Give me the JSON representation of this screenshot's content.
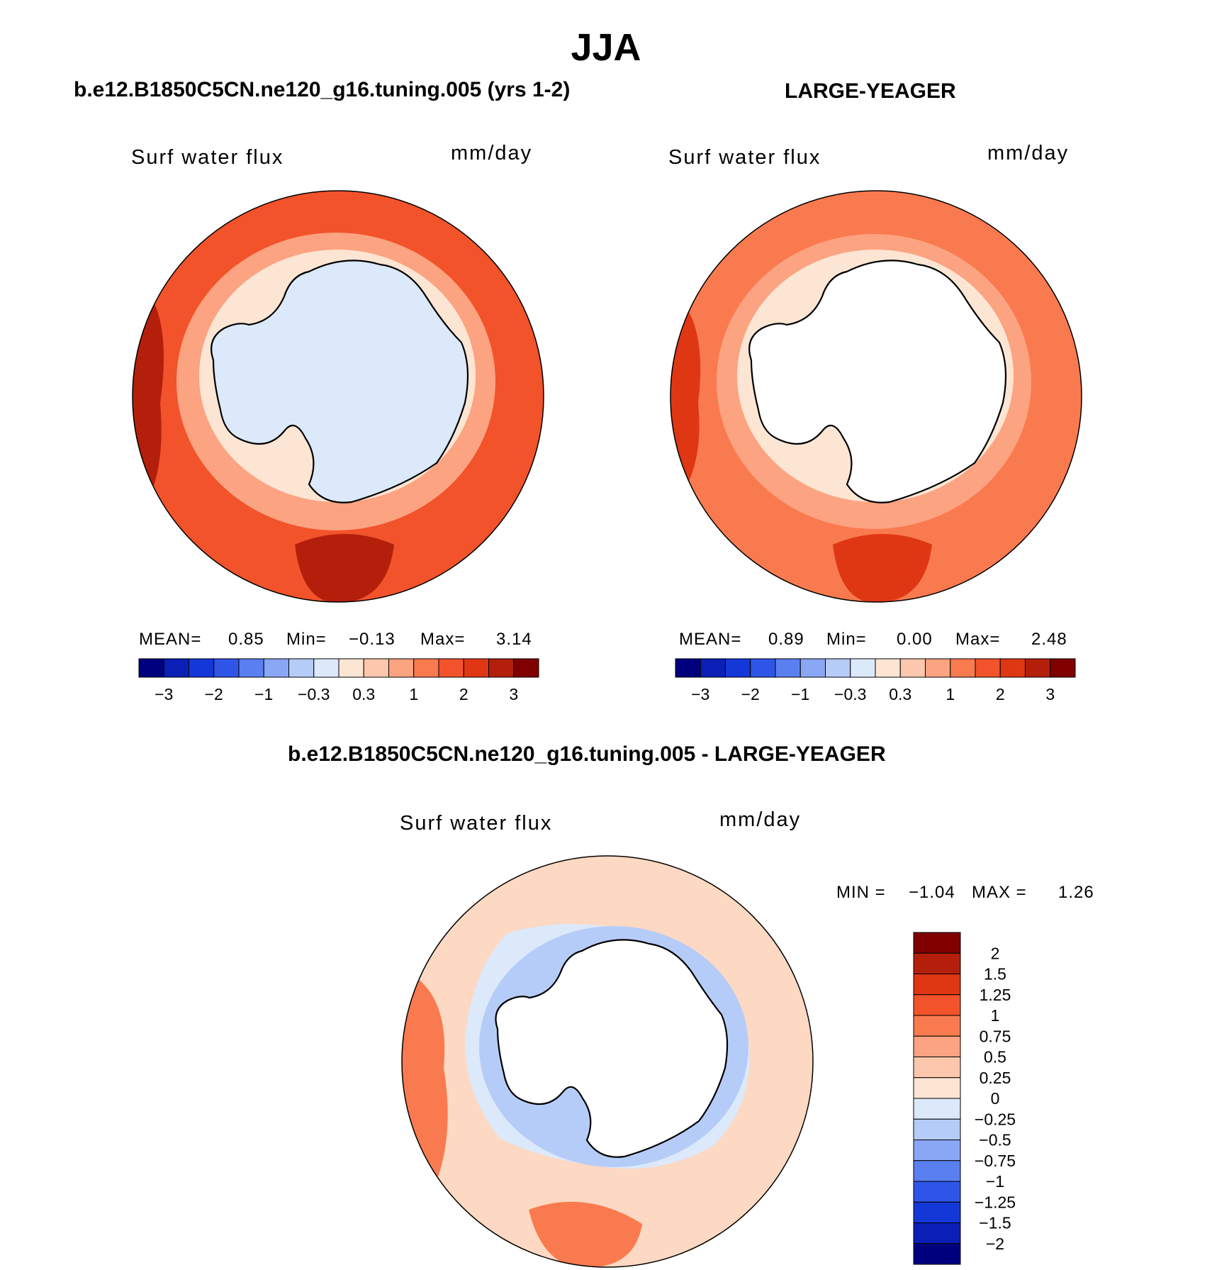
{
  "figure": {
    "season": "JJA",
    "diff_title": "b.e12.B1850C5CN.ne120_g16.tuning.005 - LARGE-YEAGER"
  },
  "panels": [
    {
      "title": "b.e12.B1850C5CN.ne120_g16.tuning.005 (yrs 1-2)",
      "variable": "Surf  water  flux",
      "units": "mm/day",
      "mean_label": "MEAN=",
      "mean": "0.85",
      "min_label": "Min=",
      "min": "−0.13",
      "max_label": "Max=",
      "max": "3.14"
    },
    {
      "title": "LARGE-YEAGER",
      "variable": "Surf  water  flux",
      "units": "mm/day",
      "mean_label": "MEAN=",
      "mean": "0.89",
      "min_label": "Min=",
      "min": "0.00",
      "max_label": "Max=",
      "max": "2.48"
    }
  ],
  "diff_panel": {
    "variable": "Surf  water  flux",
    "units": "mm/day",
    "min_label": "MIN =",
    "min": "−1.04",
    "max_label": "MAX =",
    "max": "1.26"
  },
  "main_colorbar": {
    "colors": [
      "#00007f",
      "#0a1fb5",
      "#1438d8",
      "#2f55e8",
      "#5a7ff0",
      "#8aa7f5",
      "#b6ccf8",
      "#dbe9fb",
      "#fde5d3",
      "#fdc7ad",
      "#fca381",
      "#fa7a4f",
      "#f2532a",
      "#df3714",
      "#b41f0c",
      "#800000"
    ],
    "tick_labels": [
      "−3",
      "−2",
      "−1",
      "−0.3",
      "0.3",
      "1",
      "2",
      "3"
    ]
  },
  "diff_colorbar": {
    "colors": [
      "#800000",
      "#b41f0c",
      "#df3714",
      "#f2532a",
      "#fa7a4f",
      "#fca381",
      "#fdc7ad",
      "#fde5d3",
      "#dbe9fb",
      "#b6ccf8",
      "#8aa7f5",
      "#5a7ff0",
      "#2f55e8",
      "#1438d8",
      "#0a1fb5",
      "#00007f"
    ],
    "tick_labels": [
      "2",
      "1.5",
      "1.25",
      "1",
      "0.75",
      "0.5",
      "0.25",
      "0",
      "−0.25",
      "−0.5",
      "−0.75",
      "−1",
      "−1.25",
      "−1.5",
      "−2"
    ]
  },
  "map_fields": {
    "model": {
      "ocean": "#f2532a",
      "ice_ring": "#fde5d3",
      "land": "#dbe9fb",
      "accent": "#b41f0c"
    },
    "obs": {
      "ocean": "#fa7a4f",
      "ice_ring": "#fde5d3",
      "land": "#ffffff",
      "accent": "#df3714"
    },
    "diff": {
      "ocean": "#fdc7ad",
      "ice_ring": "#b6ccf8",
      "land": "#ffffff",
      "accent": "#fa7a4f"
    }
  }
}
